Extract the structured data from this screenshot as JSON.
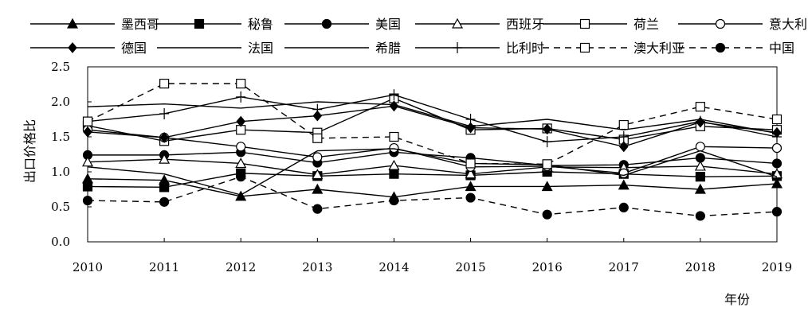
{
  "chart_data": {
    "type": "line",
    "title": "",
    "xlabel": "年份",
    "ylabel": "出口价格比",
    "ylim": [
      0,
      2.5
    ],
    "yticks": [
      "0.0",
      "0.5",
      "1.0",
      "1.5",
      "2.0",
      "2.5"
    ],
    "categories": [
      "2010",
      "2011",
      "2012",
      "2013",
      "2014",
      "2015",
      "2016",
      "2017",
      "2018",
      "2019"
    ],
    "grid": false,
    "legend_position": "top",
    "series": [
      {
        "name": "墨西哥",
        "marker": "filled-triangle",
        "dash": "solid",
        "values": [
          0.9,
          0.88,
          0.65,
          0.75,
          0.64,
          0.79,
          0.79,
          0.81,
          0.75,
          0.83
        ]
      },
      {
        "name": "秘鲁",
        "marker": "filled-square",
        "dash": "solid",
        "values": [
          0.79,
          0.78,
          0.98,
          0.94,
          0.97,
          0.95,
          1.0,
          0.97,
          0.93,
          0.94
        ]
      },
      {
        "name": "美国",
        "marker": "filled-circle",
        "dash": "solid",
        "values": [
          1.24,
          1.24,
          1.28,
          1.13,
          1.28,
          1.2,
          1.09,
          1.1,
          1.2,
          1.12
        ]
      },
      {
        "name": "西班牙",
        "marker": "open-triangle",
        "dash": "solid",
        "values": [
          1.14,
          1.18,
          1.12,
          0.96,
          1.09,
          0.97,
          1.07,
          1.06,
          1.08,
          0.97
        ]
      },
      {
        "name": "荷兰",
        "marker": "open-square",
        "dash": "solid",
        "values": [
          1.66,
          1.44,
          1.6,
          1.56,
          2.05,
          1.6,
          1.62,
          1.46,
          1.65,
          1.6
        ]
      },
      {
        "name": "意大利",
        "marker": "open-circle",
        "dash": "solid",
        "values": [
          1.6,
          1.49,
          1.36,
          1.21,
          1.34,
          1.07,
          1.08,
          0.98,
          1.36,
          1.34
        ]
      },
      {
        "name": "德国",
        "marker": "filled-diamond",
        "dash": "solid",
        "values": [
          1.57,
          1.49,
          1.72,
          1.8,
          1.94,
          1.63,
          1.61,
          1.36,
          1.71,
          1.56
        ]
      },
      {
        "name": "法国",
        "marker": "none",
        "dash": "solid",
        "values": [
          1.93,
          1.97,
          1.91,
          2.0,
          1.96,
          1.65,
          1.75,
          1.6,
          1.75,
          1.55
        ]
      },
      {
        "name": "希腊",
        "marker": "none",
        "dash": "solid",
        "values": [
          1.07,
          0.97,
          0.67,
          1.3,
          1.33,
          1.12,
          1.1,
          0.95,
          1.3,
          0.93
        ]
      },
      {
        "name": "比利时",
        "marker": "plus",
        "dash": "solid",
        "values": [
          1.72,
          1.83,
          2.07,
          1.89,
          2.1,
          1.75,
          1.43,
          1.5,
          1.72,
          1.5
        ]
      },
      {
        "name": "澳大利亚",
        "marker": "open-square",
        "dash": "dashed",
        "values": [
          1.72,
          2.26,
          2.26,
          1.48,
          1.5,
          1.12,
          1.11,
          1.67,
          1.93,
          1.75
        ]
      },
      {
        "name": "中国",
        "marker": "filled-circle",
        "dash": "dashed",
        "values": [
          0.59,
          0.57,
          0.93,
          0.47,
          0.59,
          0.63,
          0.39,
          0.49,
          0.37,
          0.43
        ]
      }
    ]
  }
}
